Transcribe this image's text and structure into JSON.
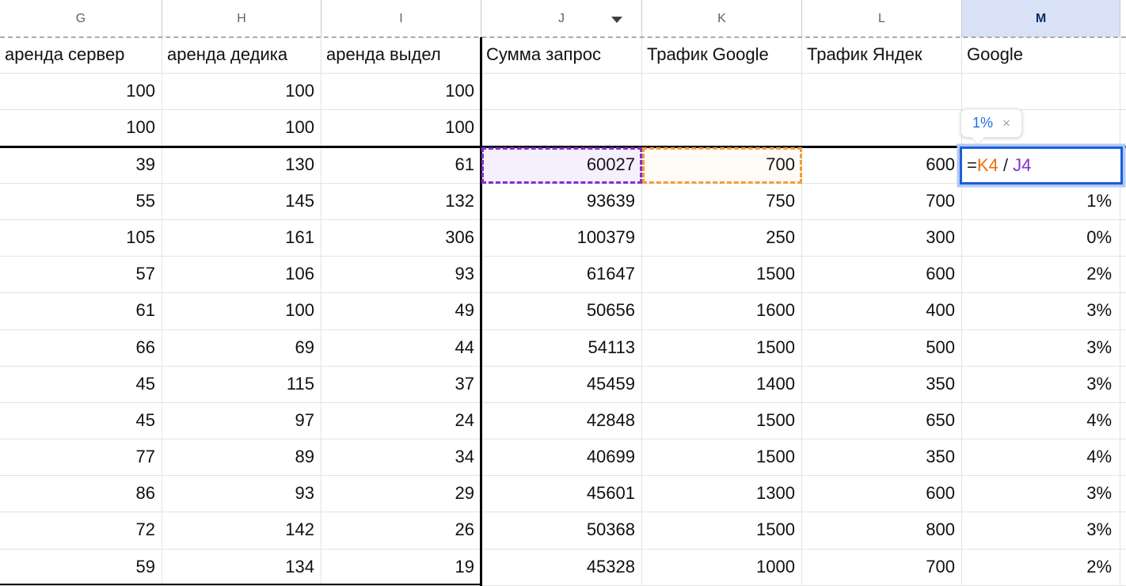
{
  "app": "spreadsheet-grid",
  "colors": {
    "grid_line": "#e2e3e3",
    "header_text": "#5f6368",
    "selected_header_bg": "#d9e2f7",
    "selected_header_text": "#0d2b68",
    "reference_1_orange": "#e8710a",
    "reference_2_purple": "#8430ce",
    "active_cell_border_blue": "#1a5fd6",
    "tooltip_value_blue": "#1a73e8",
    "thick_border_black": "#000000"
  },
  "icons": {
    "column_dropdown_arrow": "▼",
    "close_icon": "×"
  },
  "sheet": {
    "column_headers": [
      "G",
      "H",
      "I",
      "J",
      "K",
      "L",
      "M"
    ],
    "selected_column": "M",
    "dropdown_column": "J",
    "edge_fragment": "с",
    "rows": [
      [
        "аренда сервер",
        "аренда дедика",
        "аренда выдел",
        "Сумма запрос",
        "Трафик Google",
        "Трафик Яндек",
        "Google"
      ],
      [
        "100",
        "100",
        "100",
        "",
        "",
        "",
        ""
      ],
      [
        "100",
        "100",
        "100",
        "",
        "",
        "",
        ""
      ],
      [
        "39",
        "130",
        "61",
        "60027",
        "700",
        "600",
        ""
      ],
      [
        "55",
        "145",
        "132",
        "93639",
        "750",
        "700",
        "1%"
      ],
      [
        "105",
        "161",
        "306",
        "100379",
        "250",
        "300",
        "0%"
      ],
      [
        "57",
        "106",
        "93",
        "61647",
        "1500",
        "600",
        "2%"
      ],
      [
        "61",
        "100",
        "49",
        "50656",
        "1600",
        "400",
        "3%"
      ],
      [
        "66",
        "69",
        "44",
        "54113",
        "1500",
        "500",
        "3%"
      ],
      [
        "45",
        "115",
        "37",
        "45459",
        "1400",
        "350",
        "3%"
      ],
      [
        "45",
        "97",
        "24",
        "42848",
        "1500",
        "650",
        "4%"
      ],
      [
        "77",
        "89",
        "34",
        "40699",
        "1500",
        "350",
        "4%"
      ],
      [
        "86",
        "93",
        "29",
        "45601",
        "1300",
        "600",
        "3%"
      ],
      [
        "72",
        "142",
        "26",
        "50368",
        "1500",
        "800",
        "3%"
      ],
      [
        "59",
        "134",
        "19",
        "45328",
        "1000",
        "700",
        "2%"
      ]
    ]
  },
  "references": {
    "purple_ref_cell": "J4",
    "purple_ref_value": "60027",
    "orange_ref_cell": "K4",
    "orange_ref_value": "700"
  },
  "formula_editor": {
    "cell": "M4",
    "tokens": [
      {
        "text": "=",
        "color": "#202124"
      },
      {
        "text": "K4",
        "color": "#e8710a"
      },
      {
        "text": " / ",
        "color": "#202124"
      },
      {
        "text": "J4",
        "color": "#8430ce"
      }
    ]
  },
  "tooltip": {
    "value": "1%",
    "close_icon": "×"
  }
}
